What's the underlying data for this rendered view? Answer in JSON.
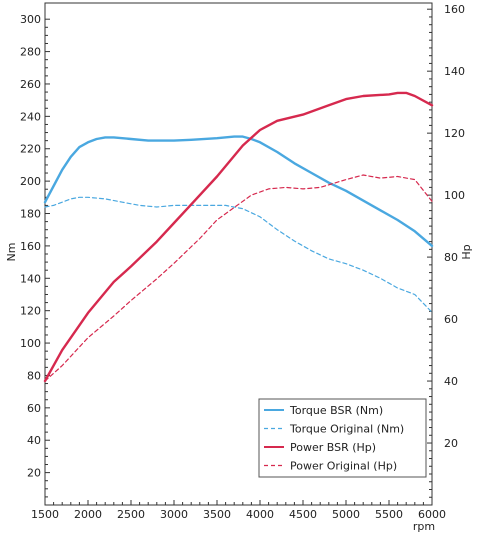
{
  "chart_data": {
    "type": "line",
    "xlabel": "rpm",
    "ylabel_left": "Nm",
    "ylabel_right": "Hp",
    "xlim": [
      1500,
      6000
    ],
    "ylim_left": [
      0,
      310
    ],
    "ylim_right": [
      0,
      162
    ],
    "x_ticks": [
      1500,
      2000,
      2500,
      3000,
      3500,
      4000,
      4500,
      5000,
      5500,
      6000
    ],
    "y_ticks_left": [
      20,
      40,
      60,
      80,
      100,
      120,
      140,
      160,
      180,
      200,
      220,
      240,
      260,
      280,
      300
    ],
    "y_ticks_right": [
      20,
      40,
      60,
      80,
      100,
      120,
      140,
      160
    ],
    "grid": false,
    "legend_position": "bottom-right",
    "colors": {
      "blue": "#4aa8e0",
      "red": "#d6294e"
    },
    "series": [
      {
        "name": "Torque BSR (Nm)",
        "axis": "left",
        "color": "#4aa8e0",
        "dash": "solid",
        "points": [
          [
            1500,
            187
          ],
          [
            1600,
            197
          ],
          [
            1700,
            207
          ],
          [
            1800,
            215
          ],
          [
            1900,
            221
          ],
          [
            2000,
            224
          ],
          [
            2100,
            226
          ],
          [
            2200,
            227
          ],
          [
            2300,
            227
          ],
          [
            2500,
            226
          ],
          [
            2700,
            225
          ],
          [
            3000,
            225
          ],
          [
            3200,
            225.5
          ],
          [
            3500,
            226.5
          ],
          [
            3700,
            227.5
          ],
          [
            3800,
            227.5
          ],
          [
            3900,
            226
          ],
          [
            4000,
            224
          ],
          [
            4200,
            218
          ],
          [
            4400,
            211
          ],
          [
            4600,
            205
          ],
          [
            4800,
            199
          ],
          [
            5000,
            194
          ],
          [
            5200,
            188
          ],
          [
            5400,
            182
          ],
          [
            5600,
            176
          ],
          [
            5800,
            169
          ],
          [
            6000,
            160
          ]
        ]
      },
      {
        "name": "Torque Original (Nm)",
        "axis": "left",
        "color": "#4aa8e0",
        "dash": "dashed",
        "points": [
          [
            1500,
            184
          ],
          [
            1600,
            185
          ],
          [
            1700,
            187
          ],
          [
            1800,
            189
          ],
          [
            1900,
            190
          ],
          [
            2000,
            190
          ],
          [
            2200,
            189
          ],
          [
            2400,
            187
          ],
          [
            2600,
            185
          ],
          [
            2800,
            184
          ],
          [
            3000,
            185
          ],
          [
            3200,
            185
          ],
          [
            3400,
            185
          ],
          [
            3600,
            185
          ],
          [
            3800,
            183
          ],
          [
            4000,
            178
          ],
          [
            4200,
            170
          ],
          [
            4400,
            163
          ],
          [
            4600,
            157
          ],
          [
            4800,
            152
          ],
          [
            5000,
            149
          ],
          [
            5200,
            145
          ],
          [
            5400,
            140
          ],
          [
            5600,
            134
          ],
          [
            5800,
            130
          ],
          [
            6000,
            119
          ]
        ]
      },
      {
        "name": "Power BSR (Hp)",
        "axis": "right",
        "color": "#d6294e",
        "dash": "solid",
        "points": [
          [
            1500,
            40
          ],
          [
            1700,
            50
          ],
          [
            2000,
            62
          ],
          [
            2300,
            72
          ],
          [
            2500,
            77
          ],
          [
            2800,
            85
          ],
          [
            3000,
            91
          ],
          [
            3200,
            97
          ],
          [
            3500,
            106
          ],
          [
            3800,
            116
          ],
          [
            4000,
            121
          ],
          [
            4200,
            124
          ],
          [
            4500,
            126
          ],
          [
            4800,
            129
          ],
          [
            5000,
            131
          ],
          [
            5200,
            132
          ],
          [
            5500,
            132.5
          ],
          [
            5600,
            133
          ],
          [
            5700,
            133
          ],
          [
            5800,
            132
          ],
          [
            6000,
            129
          ]
        ]
      },
      {
        "name": "Power Original (Hp)",
        "axis": "right",
        "color": "#d6294e",
        "dash": "dashed",
        "points": [
          [
            1500,
            40
          ],
          [
            1700,
            45
          ],
          [
            2000,
            54
          ],
          [
            2300,
            61
          ],
          [
            2500,
            66
          ],
          [
            2800,
            73
          ],
          [
            3000,
            78
          ],
          [
            3300,
            86
          ],
          [
            3500,
            92
          ],
          [
            3700,
            96
          ],
          [
            3900,
            100
          ],
          [
            4100,
            102
          ],
          [
            4300,
            102.5
          ],
          [
            4500,
            102
          ],
          [
            4700,
            102.5
          ],
          [
            5000,
            105
          ],
          [
            5200,
            106.5
          ],
          [
            5400,
            105.5
          ],
          [
            5600,
            106
          ],
          [
            5800,
            105
          ],
          [
            6000,
            98
          ]
        ]
      }
    ]
  }
}
